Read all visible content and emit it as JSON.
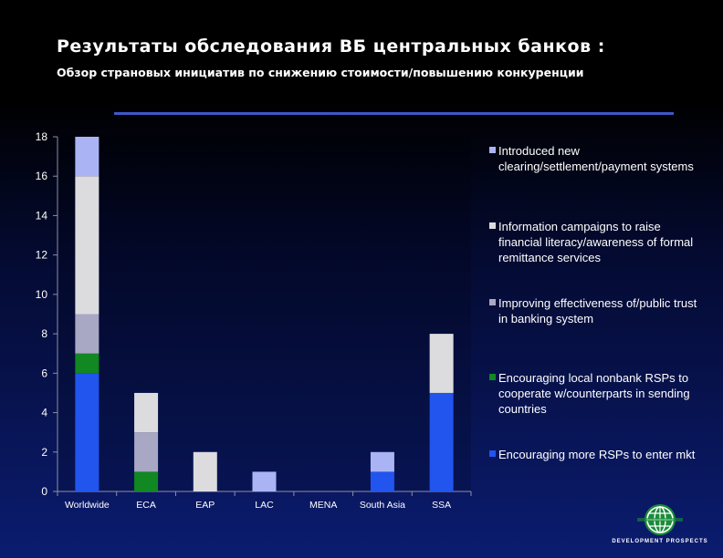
{
  "title": "Результаты обследования ВБ центральных банков :",
  "subtitle": "Обзор страновых инициатив по снижению стоимости/повышению конкуренции",
  "logo_text": "DEVELOPMENT PROSPECTS",
  "chart_data": {
    "type": "bar",
    "stacked": true,
    "title": "",
    "xlabel": "",
    "ylabel": "",
    "ylim": [
      0,
      18
    ],
    "yticks": [
      0,
      2,
      4,
      6,
      8,
      10,
      12,
      14,
      16,
      18
    ],
    "grid": false,
    "legend_position": "right",
    "categories": [
      "Worldwide",
      "ECA",
      "EAP",
      "LAC",
      "MENA",
      "South Asia",
      "SSA"
    ],
    "series": [
      {
        "name": "Encouraging more RSPs to enter mkt",
        "color": "#2255ee",
        "values": [
          6,
          0,
          0,
          0,
          0,
          1,
          5
        ]
      },
      {
        "name": "Encouraging local nonbank RSPs to cooperate w/counterparts  in sending countries",
        "color": "#118822",
        "values": [
          1,
          1,
          0,
          0,
          0,
          0,
          0
        ]
      },
      {
        "name": "Improving effectiveness of/public trust in banking system",
        "color": "#a8a8c4",
        "values": [
          2,
          2,
          0,
          0,
          0,
          0,
          0
        ]
      },
      {
        "name": "Information campaigns to raise financial literacy/awareness of formal remittance services",
        "color": "#dcdcdf",
        "values": [
          7,
          2,
          2,
          0,
          0,
          0,
          3
        ]
      },
      {
        "name": "Introduced new clearing/settlement/payment systems",
        "color": "#aab4f5",
        "values": [
          2,
          0,
          0,
          1,
          0,
          1,
          0
        ]
      }
    ]
  }
}
